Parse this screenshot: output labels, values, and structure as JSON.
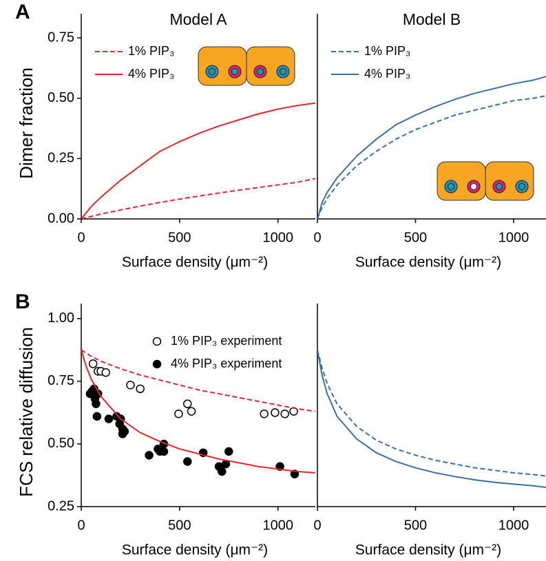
{
  "chart_data": [
    {
      "type": "line",
      "panel_label": "A",
      "title": "Model A",
      "ylabel": "Dimer fraction",
      "xlabel": "Surface density (μm⁻²)",
      "xlim": [
        0,
        1190
      ],
      "xticks": [
        0,
        500,
        1000
      ],
      "ylim": [
        0,
        0.85
      ],
      "yticks": [
        {
          "value": 0,
          "label": "0.00"
        },
        {
          "value": 0.25,
          "label": "0.25"
        },
        {
          "value": 0.5,
          "label": "0.50"
        },
        {
          "value": 0.75,
          "label": "0.75"
        }
      ],
      "legend": "upper left",
      "series": [
        {
          "name": "1% PIP₃",
          "color": "#e8232a",
          "dash": true,
          "x": [
            0,
            25,
            50,
            100,
            200,
            300,
            400,
            500,
            600,
            700,
            800,
            900,
            1000,
            1100,
            1190
          ],
          "values": [
            0,
            0.005,
            0.01,
            0.02,
            0.037,
            0.053,
            0.068,
            0.082,
            0.095,
            0.107,
            0.119,
            0.13,
            0.141,
            0.152,
            0.167
          ]
        },
        {
          "name": "4% PIP₃",
          "color": "#e8232a",
          "dash": false,
          "x": [
            0,
            25,
            50,
            100,
            200,
            300,
            400,
            500,
            600,
            700,
            800,
            900,
            1000,
            1100,
            1190
          ],
          "values": [
            0,
            0.025,
            0.05,
            0.09,
            0.16,
            0.22,
            0.28,
            0.32,
            0.355,
            0.385,
            0.41,
            0.435,
            0.455,
            0.47,
            0.48
          ]
        }
      ]
    },
    {
      "type": "line",
      "title": "Model B",
      "xlabel": "Surface density (μm⁻²)",
      "xlim": [
        0,
        1165
      ],
      "xticks": [
        0,
        500,
        1000
      ],
      "ylim": [
        0,
        0.85
      ],
      "legend": "upper left",
      "series": [
        {
          "name": "1% PIP₃",
          "color": "#3a6ea5",
          "dash": true,
          "x": [
            0,
            25,
            50,
            100,
            200,
            300,
            400,
            500,
            600,
            700,
            800,
            900,
            1000,
            1100,
            1165
          ],
          "values": [
            0,
            0.05,
            0.085,
            0.14,
            0.22,
            0.28,
            0.33,
            0.37,
            0.4,
            0.43,
            0.45,
            0.47,
            0.49,
            0.5,
            0.51
          ]
        },
        {
          "name": "4% PIP₃",
          "color": "#3a6ea5",
          "dash": false,
          "x": [
            0,
            25,
            50,
            100,
            200,
            300,
            400,
            500,
            600,
            700,
            800,
            900,
            1000,
            1100,
            1165
          ],
          "values": [
            0,
            0.07,
            0.11,
            0.17,
            0.26,
            0.33,
            0.39,
            0.43,
            0.465,
            0.495,
            0.52,
            0.54,
            0.56,
            0.575,
            0.59
          ]
        }
      ]
    },
    {
      "type": "line",
      "panel_label": "B",
      "ylabel": "FCS relative diffusion",
      "xlabel": "Surface density (μm⁻²)",
      "xlim": [
        0,
        1190
      ],
      "xticks": [
        0,
        500,
        1000
      ],
      "ylim": [
        0.25,
        1.06
      ],
      "yticks": [
        {
          "value": 0.25,
          "label": "0.25"
        },
        {
          "value": 0.5,
          "label": "0.50"
        },
        {
          "value": 0.75,
          "label": "0.75"
        },
        {
          "value": 1,
          "label": "1.00"
        }
      ],
      "legend": "upper right",
      "series": [
        {
          "name": "1% PIP₃ experiment",
          "color": "#000000",
          "kind": "scatter",
          "filled": false,
          "x": [
            60,
            85,
            100,
            125,
            250,
            300,
            495,
            540,
            560,
            930,
            985,
            1035,
            1080
          ],
          "values": [
            0.82,
            0.79,
            0.79,
            0.785,
            0.735,
            0.72,
            0.62,
            0.66,
            0.63,
            0.62,
            0.625,
            0.62,
            0.63
          ]
        },
        {
          "name": "4% PIP₃ experiment",
          "color": "#000000",
          "kind": "scatter",
          "filled": true,
          "x": [
            45,
            55,
            65,
            70,
            75,
            80,
            85,
            140,
            180,
            195,
            200,
            210,
            210,
            220,
            345,
            390,
            400,
            420,
            420,
            540,
            620,
            700,
            715,
            735,
            750,
            1010,
            1085
          ],
          "values": [
            0.7,
            0.71,
            0.72,
            0.68,
            0.66,
            0.61,
            0.7,
            0.6,
            0.61,
            0.58,
            0.6,
            0.56,
            0.54,
            0.55,
            0.455,
            0.48,
            0.47,
            0.5,
            0.47,
            0.43,
            0.465,
            0.41,
            0.39,
            0.42,
            0.47,
            0.41,
            0.38
          ]
        },
        {
          "color": "#e8232a",
          "dash": true,
          "x": [
            0,
            50,
            100,
            200,
            300,
            400,
            500,
            600,
            700,
            800,
            900,
            1000,
            1100,
            1190
          ],
          "values": [
            0.875,
            0.85,
            0.83,
            0.8,
            0.775,
            0.755,
            0.735,
            0.715,
            0.7,
            0.685,
            0.67,
            0.655,
            0.64,
            0.63
          ]
        },
        {
          "color": "#e8232a",
          "dash": false,
          "x": [
            0,
            25,
            50,
            100,
            200,
            300,
            400,
            500,
            600,
            700,
            800,
            900,
            1000,
            1100,
            1190
          ],
          "values": [
            0.875,
            0.81,
            0.76,
            0.69,
            0.6,
            0.545,
            0.51,
            0.48,
            0.46,
            0.44,
            0.425,
            0.41,
            0.4,
            0.39,
            0.385
          ]
        }
      ]
    },
    {
      "type": "line",
      "xlabel": "Surface density (μm⁻²)",
      "xlim": [
        0,
        1165
      ],
      "xticks": [
        0,
        500,
        1000
      ],
      "ylim": [
        0.25,
        1.06
      ],
      "series": [
        {
          "color": "#3a6ea5",
          "dash": true,
          "x": [
            0,
            25,
            50,
            100,
            200,
            300,
            400,
            500,
            600,
            700,
            800,
            900,
            1000,
            1100,
            1165
          ],
          "values": [
            0.875,
            0.8,
            0.74,
            0.66,
            0.57,
            0.515,
            0.48,
            0.455,
            0.435,
            0.42,
            0.405,
            0.395,
            0.385,
            0.378,
            0.372
          ]
        },
        {
          "color": "#3a6ea5",
          "dash": false,
          "x": [
            0,
            25,
            50,
            100,
            200,
            300,
            400,
            500,
            600,
            700,
            800,
            900,
            1000,
            1100,
            1165
          ],
          "values": [
            0.875,
            0.77,
            0.7,
            0.61,
            0.52,
            0.465,
            0.43,
            0.405,
            0.385,
            0.37,
            0.357,
            0.347,
            0.34,
            0.333,
            0.327
          ]
        }
      ]
    }
  ]
}
